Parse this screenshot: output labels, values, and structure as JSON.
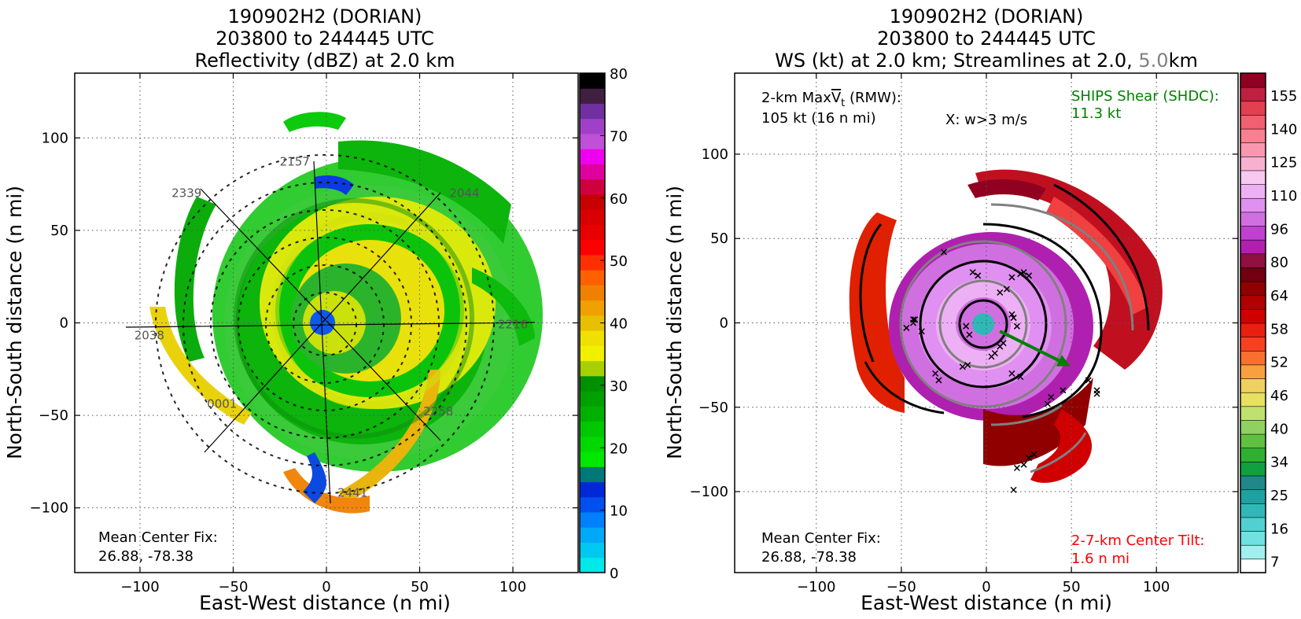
{
  "chart_data": [
    {
      "type": "heatmap",
      "title_lines": [
        "190902H2 (DORIAN)",
        "203800 to 244445 UTC",
        "Reflectivity (dBZ) at 2.0 km"
      ],
      "xlabel": "East-West distance (n mi)",
      "ylabel": "North-South distance (n mi)",
      "xlim": [
        -135,
        135
      ],
      "ylim": [
        -135,
        135
      ],
      "xticks": [
        -100,
        -50,
        0,
        50,
        100
      ],
      "yticks": [
        -100,
        -50,
        0,
        50,
        100
      ],
      "grid": true,
      "colorbar": {
        "min": 0,
        "max": 80,
        "ticks": [
          0,
          10,
          20,
          30,
          40,
          50,
          60,
          70,
          80
        ]
      },
      "track_labels": [
        {
          "text": "2157",
          "x": -17,
          "y": 85
        },
        {
          "text": "2044",
          "x": 74,
          "y": 68
        },
        {
          "text": "2339",
          "x": -75,
          "y": 68
        },
        {
          "text": "2038",
          "x": -95,
          "y": -9
        },
        {
          "text": "0001",
          "x": -56,
          "y": -46
        },
        {
          "text": "2258",
          "x": 60,
          "y": -50
        },
        {
          "text": "2216",
          "x": 100,
          "y": -3
        },
        {
          "text": "2441",
          "x": 14,
          "y": -94
        }
      ],
      "annotation_lines": [
        "Mean Center Fix:",
        "26.88, -78.38"
      ]
    },
    {
      "type": "heatmap",
      "title_lines": [
        "190902H2 (DORIAN)",
        "203800 to 244445 UTC"
      ],
      "title_line3": {
        "part1": "WS (kt) at 2.0 km; Streamlines at 2.0,",
        "part2": "5.0",
        "part3": "km"
      },
      "xlabel": "East-West distance (n mi)",
      "ylabel": "North-South distance (n mi)",
      "xlim": [
        -148,
        148
      ],
      "ylim": [
        -148,
        148
      ],
      "xticks": [
        -100,
        -50,
        0,
        50,
        100
      ],
      "yticks": [
        -100,
        -50,
        0,
        50,
        100
      ],
      "grid": true,
      "colorbar": {
        "ticks": [
          "7",
          "16",
          "25",
          "34",
          "40",
          "46",
          "52",
          "58",
          "64",
          "80",
          "96",
          "110",
          "125",
          "140",
          "155"
        ]
      },
      "annotation_maxvt": {
        "pre": "2-km Max",
        "sym": "V",
        "sub": "t",
        "post": " (RMW):",
        "line2": "105 kt (16 n mi)"
      },
      "annotation_w": "X: w>3 m/s",
      "annotation_shear": [
        "SHIPS Shear (SHDC):",
        "11.3 kt"
      ],
      "annotation_center": [
        "Mean Center Fix:",
        "26.88, -78.38"
      ],
      "annotation_tilt": [
        "2-7-km Center Tilt:",
        "1.6 n mi"
      ],
      "shear_vector": {
        "from": [
          8,
          -5
        ],
        "to": [
          48,
          -25
        ]
      }
    }
  ],
  "colors": {
    "shear": "#008000",
    "tilt": "#ff0000",
    "grey": "#808080",
    "refl_scale": [
      "#00e8e8",
      "#00c8f0",
      "#00a8f8",
      "#0080ff",
      "#0050f0",
      "#0028d8",
      "#007878",
      "#00e800",
      "#00d800",
      "#00c800",
      "#00b000",
      "#00a000",
      "#009000",
      "#a8d000",
      "#f0f000",
      "#f0e000",
      "#e8c000",
      "#f0a000",
      "#f08000",
      "#ff6000",
      "#ff3000",
      "#ff0000",
      "#e80000",
      "#d80000",
      "#c80000",
      "#d00040",
      "#e000a0",
      "#f000f0",
      "#c050d8",
      "#a040c8",
      "#7030a0",
      "#402040",
      "#000000"
    ],
    "ws_scale": [
      "#ffffff",
      "#a0f0f0",
      "#70e0e0",
      "#50d0d0",
      "#30b8b8",
      "#20a0a0",
      "#208888",
      "#10a040",
      "#30b030",
      "#60c040",
      "#90d060",
      "#c0e070",
      "#e8e060",
      "#f0d060",
      "#f8a040",
      "#f87030",
      "#f84020",
      "#e82010",
      "#d00000",
      "#b00000",
      "#900000",
      "#700010",
      "#901040",
      "#b020b0",
      "#c040d0",
      "#d070e0",
      "#e090f0",
      "#eeb0f4",
      "#f8c8f0",
      "#f8b0d0",
      "#f898b0",
      "#f88090",
      "#f06070",
      "#e04050",
      "#c02040",
      "#900020"
    ]
  }
}
